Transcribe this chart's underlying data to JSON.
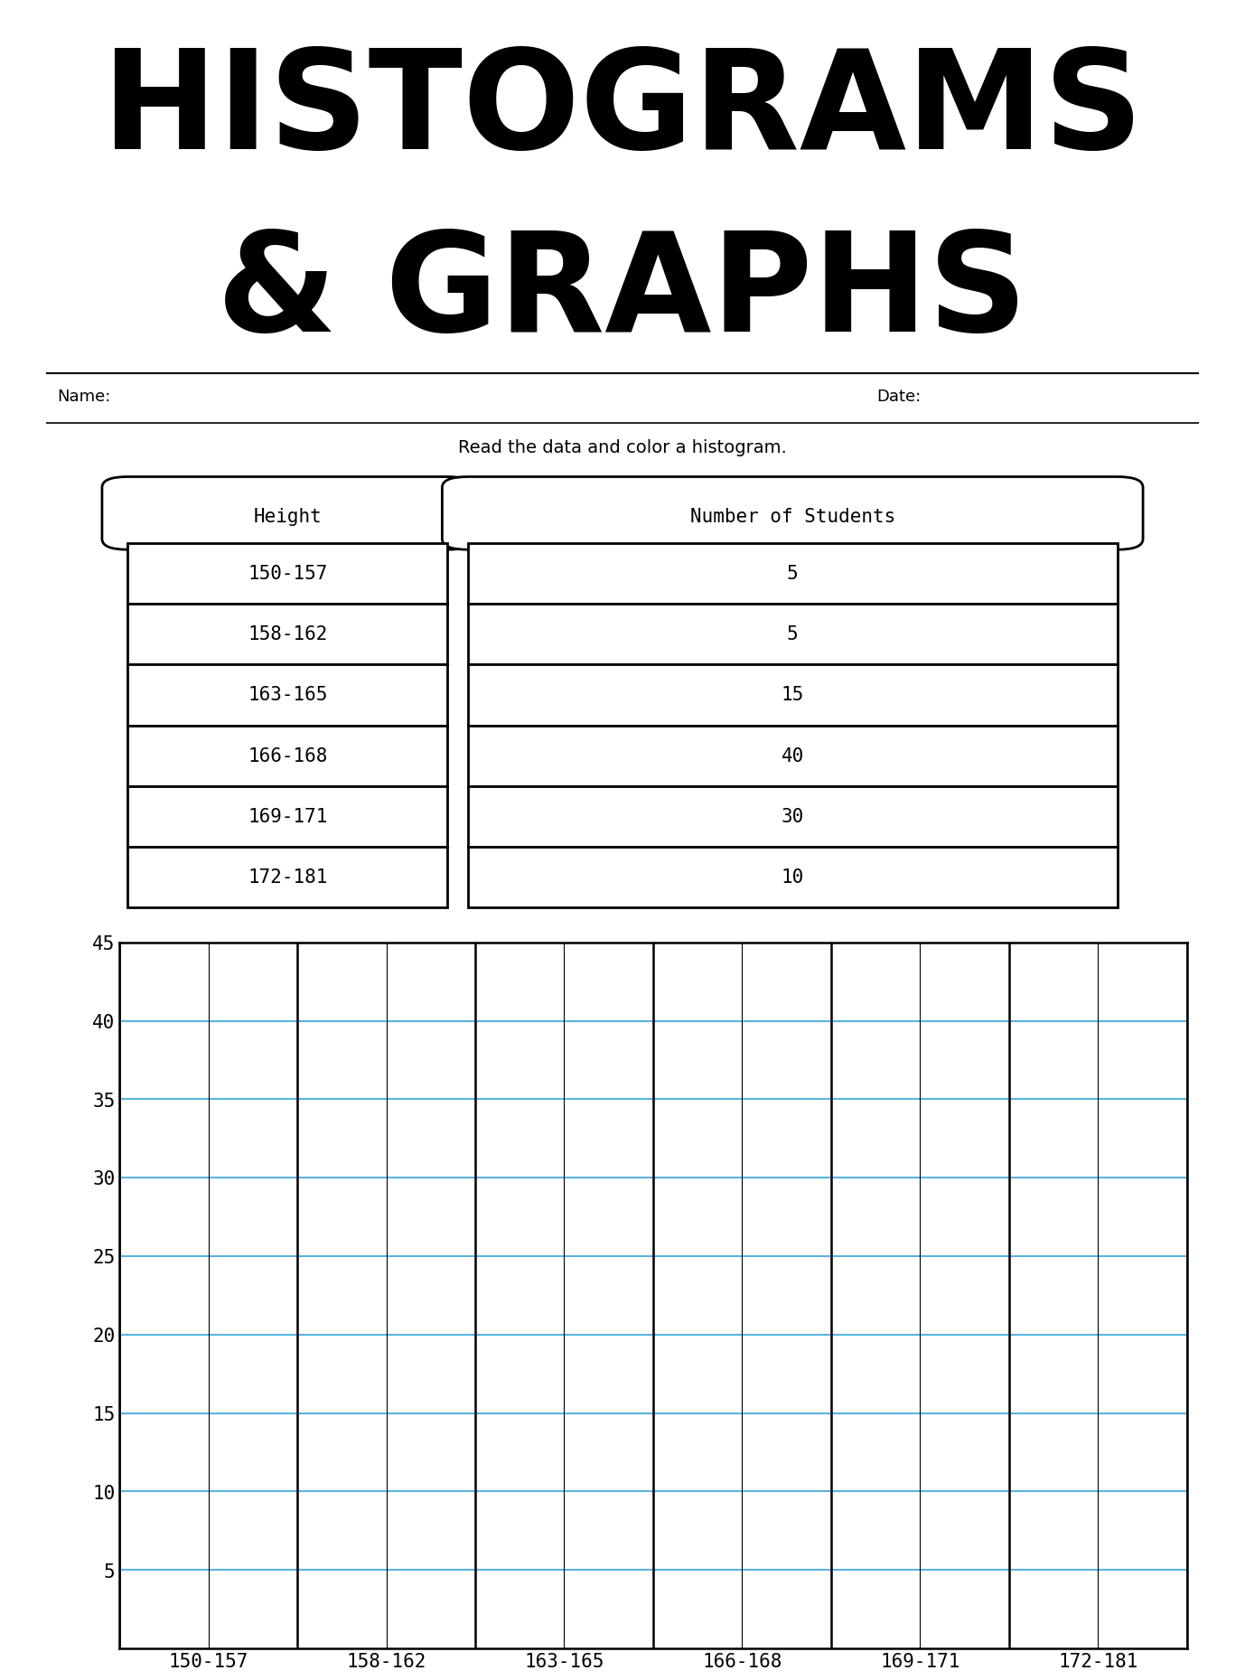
{
  "title_line1": "HISTOGRAMS",
  "title_line2": "& GRAPHS",
  "title_font_size": 110,
  "title_color": "#000000",
  "name_label": "Name:",
  "date_label": "Date:",
  "instruction": "Read the data and color a histogram.",
  "table_headers": [
    "Height",
    "Number of Students"
  ],
  "table_rows": [
    [
      "150-157",
      "5"
    ],
    [
      "158-162",
      "5"
    ],
    [
      "163-165",
      "15"
    ],
    [
      "166-168",
      "40"
    ],
    [
      "169-171",
      "30"
    ],
    [
      "172-181",
      "10"
    ]
  ],
  "categories": [
    "150-157",
    "158-162",
    "163-165",
    "166-168",
    "169-171",
    "172-181"
  ],
  "yticks": [
    5,
    10,
    15,
    20,
    25,
    30,
    35,
    40,
    45
  ],
  "ymax": 45,
  "grid_color": "#5ab4e0",
  "grid_linewidth": 1.5,
  "axis_linewidth": 1.8,
  "background_color": "#ffffff",
  "font_color": "#000000",
  "table_font": "monospace",
  "axis_font_size": 15,
  "minor_grid_color": "#000000",
  "minor_grid_linewidth": 0.8
}
